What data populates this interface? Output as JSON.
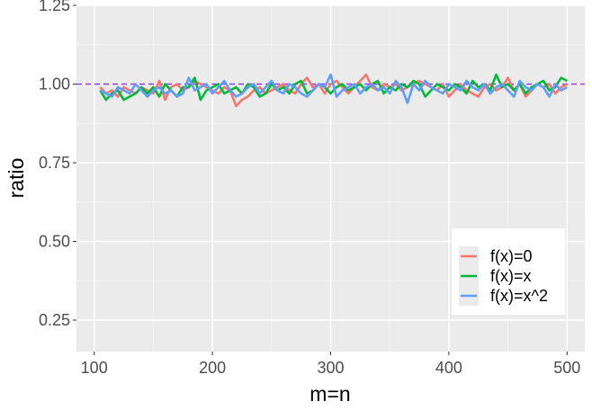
{
  "chart_data": {
    "type": "line",
    "title": "",
    "xlabel": "m=n",
    "ylabel": "ratio",
    "xlim": [
      85,
      515
    ],
    "ylim": [
      0.15,
      1.25
    ],
    "x_ticks": [
      100,
      200,
      300,
      400,
      500
    ],
    "x_tick_labels": [
      "100",
      "200",
      "300",
      "400",
      "500"
    ],
    "y_ticks": [
      0.25,
      0.5,
      0.75,
      1.0,
      1.25
    ],
    "y_tick_labels": [
      "0.25",
      "0.50",
      "0.75",
      "1.00",
      "1.25"
    ],
    "grid": true,
    "legend_position": "bottom-right",
    "reference_line": {
      "y": 1.0,
      "style": "dashed",
      "color": "#9933ff"
    },
    "x": [
      105,
      110,
      115,
      120,
      125,
      130,
      135,
      140,
      145,
      150,
      155,
      160,
      165,
      170,
      175,
      180,
      185,
      190,
      195,
      200,
      205,
      210,
      215,
      220,
      225,
      230,
      235,
      240,
      245,
      250,
      255,
      260,
      265,
      270,
      275,
      280,
      285,
      290,
      295,
      300,
      305,
      310,
      315,
      320,
      325,
      330,
      335,
      340,
      345,
      350,
      355,
      360,
      365,
      370,
      375,
      380,
      385,
      390,
      395,
      400,
      405,
      410,
      415,
      420,
      425,
      430,
      435,
      440,
      445,
      450,
      455,
      460,
      465,
      470,
      475,
      480,
      485,
      490,
      495,
      500
    ],
    "series": [
      {
        "name": "f(x)=0",
        "color": "#f8766d",
        "values": [
          0.99,
          0.97,
          0.98,
          0.96,
          0.99,
          0.98,
          0.97,
          0.99,
          0.98,
          0.97,
          1.01,
          0.95,
          0.99,
          1.0,
          0.98,
          0.99,
          1.01,
          1.0,
          0.99,
          0.98,
          0.97,
          0.99,
          0.98,
          0.93,
          0.95,
          0.96,
          0.98,
          0.99,
          0.97,
          0.98,
          0.99,
          1.0,
          0.98,
          0.97,
          1.0,
          1.02,
          0.99,
          1.0,
          0.97,
          1.0,
          1.01,
          0.99,
          0.97,
          0.99,
          1.01,
          1.03,
          0.99,
          0.98,
          1.0,
          0.99,
          1.0,
          0.98,
          0.99,
          1.0,
          1.01,
          1.0,
          0.99,
          0.98,
          1.0,
          0.96,
          0.98,
          1.0,
          0.98,
          0.97,
          0.96,
          0.99,
          1.0,
          0.98,
          0.99,
          1.02,
          0.98,
          1.0,
          0.96,
          0.98,
          1.0,
          0.99,
          1.0,
          0.97,
          0.99,
          1.0
        ]
      },
      {
        "name": "f(x)=x",
        "color": "#00ba38",
        "values": [
          0.98,
          0.95,
          0.97,
          0.98,
          0.95,
          0.96,
          0.97,
          0.99,
          0.97,
          0.99,
          0.96,
          1.0,
          0.98,
          0.96,
          0.99,
          0.99,
          1.02,
          0.95,
          0.98,
          0.99,
          1.0,
          0.97,
          0.98,
          0.99,
          0.97,
          1.0,
          0.99,
          0.96,
          0.97,
          1.0,
          0.98,
          0.99,
          0.97,
          1.0,
          1.01,
          0.97,
          0.98,
          1.0,
          0.99,
          0.97,
          0.99,
          1.0,
          0.98,
          0.99,
          1.0,
          0.98,
          1.0,
          1.01,
          0.97,
          0.99,
          0.98,
          1.0,
          0.99,
          1.01,
          1.0,
          0.96,
          0.98,
          1.0,
          0.99,
          0.98,
          1.0,
          0.99,
          0.97,
          1.01,
          0.99,
          1.0,
          0.98,
          1.03,
          0.99,
          1.0,
          0.98,
          1.0,
          0.97,
          0.99,
          1.0,
          1.01,
          0.98,
          0.99,
          1.02,
          1.01
        ]
      },
      {
        "name": "f(x)=x^2",
        "color": "#619cff",
        "values": [
          0.98,
          0.97,
          0.96,
          0.99,
          0.98,
          0.97,
          1.0,
          0.98,
          0.96,
          0.98,
          0.99,
          0.97,
          0.98,
          0.96,
          0.97,
          1.02,
          0.98,
          0.99,
          1.0,
          0.97,
          0.99,
          1.01,
          0.98,
          0.96,
          0.97,
          0.99,
          1.0,
          0.97,
          0.99,
          1.01,
          0.98,
          0.97,
          1.0,
          0.99,
          0.97,
          0.96,
          0.98,
          1.0,
          0.99,
          1.03,
          0.96,
          0.98,
          0.99,
          1.0,
          0.97,
          0.99,
          1.0,
          0.98,
          0.99,
          0.97,
          1.01,
          0.99,
          0.94,
          1.0,
          0.98,
          1.01,
          0.99,
          0.98,
          0.97,
          1.0,
          0.99,
          0.98,
          1.01,
          0.99,
          0.98,
          1.0,
          0.97,
          0.99,
          1.0,
          0.98,
          0.96,
          1.01,
          0.99,
          0.98,
          1.0,
          0.99,
          0.96,
          1.0,
          0.98,
          0.99
        ]
      }
    ]
  }
}
